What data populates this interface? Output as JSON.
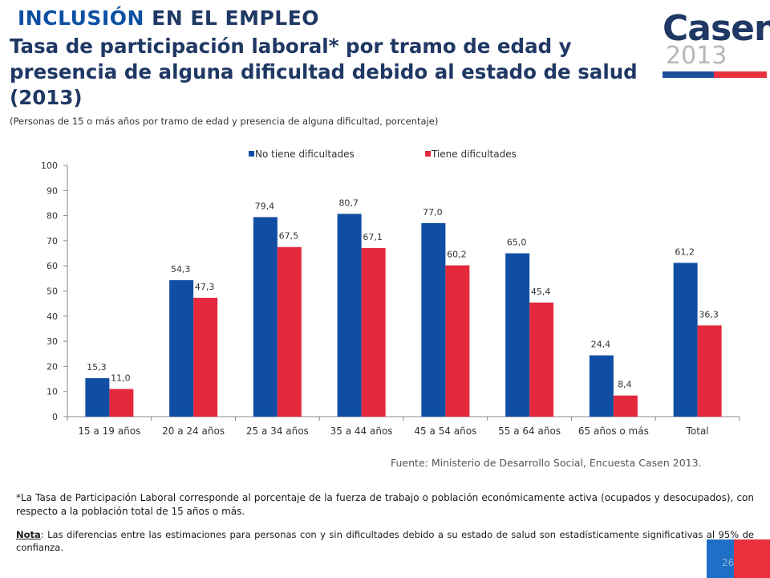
{
  "header": {
    "section_title_a": "INCLUSIÓN",
    "section_title_b": " EN EL EMPLEO",
    "title": "Tasa de participación laboral* por tramo de edad y presencia de alguna dificultad debido al estado de salud (2013)",
    "subtitle": "(Personas de 15 o más años por tramo de edad y presencia de alguna dificultad, porcentaje)"
  },
  "logo": {
    "word": "Casen",
    "year": "2013"
  },
  "colors": {
    "blue": "#0f4ea3",
    "red": "#e3293b",
    "navy": "#1f3864"
  },
  "chart_data": {
    "type": "bar",
    "categories": [
      "15 a 19 años",
      "20 a 24 años",
      "25 a 34 años",
      "35 a 44 años",
      "45 a 54 años",
      "55 a 64 años",
      "65 años o más",
      "Total"
    ],
    "series": [
      {
        "name": "No tiene dificultades",
        "color": "#0f4ea3",
        "values": [
          15.3,
          54.3,
          79.4,
          80.7,
          77.0,
          65.0,
          24.4,
          61.2
        ],
        "labels": [
          "15,3",
          "54,3",
          "79,4",
          "80,7",
          "77,0",
          "65,0",
          "24,4",
          "61,2"
        ]
      },
      {
        "name": "Tiene dificultades",
        "color": "#e3293b",
        "values": [
          11.0,
          47.3,
          67.5,
          67.1,
          60.2,
          45.4,
          8.4,
          36.3
        ],
        "labels": [
          "11,0",
          "47,3",
          "67,5",
          "67,1",
          "60,2",
          "45,4",
          "8,4",
          "36,3"
        ]
      }
    ],
    "ylim": [
      0,
      100
    ],
    "yticks": [
      0,
      10,
      20,
      30,
      40,
      50,
      60,
      70,
      80,
      90,
      100
    ],
    "grid": false,
    "legend": "top"
  },
  "source": "Fuente: Ministerio de Desarrollo Social, Encuesta Casen 2013.",
  "footnote": "*La Tasa de Participación Laboral corresponde al porcentaje de la fuerza de trabajo o población económicamente activa (ocupados y desocupados), con respecto a la población total de 15 años o más.",
  "nota": {
    "label": "Nota",
    "text": ": Las diferencias entre las estimaciones para personas con y sin dificultades debido a su estado de salud son estadísticamente significativas al 95% de confianza."
  },
  "page_number": "26"
}
